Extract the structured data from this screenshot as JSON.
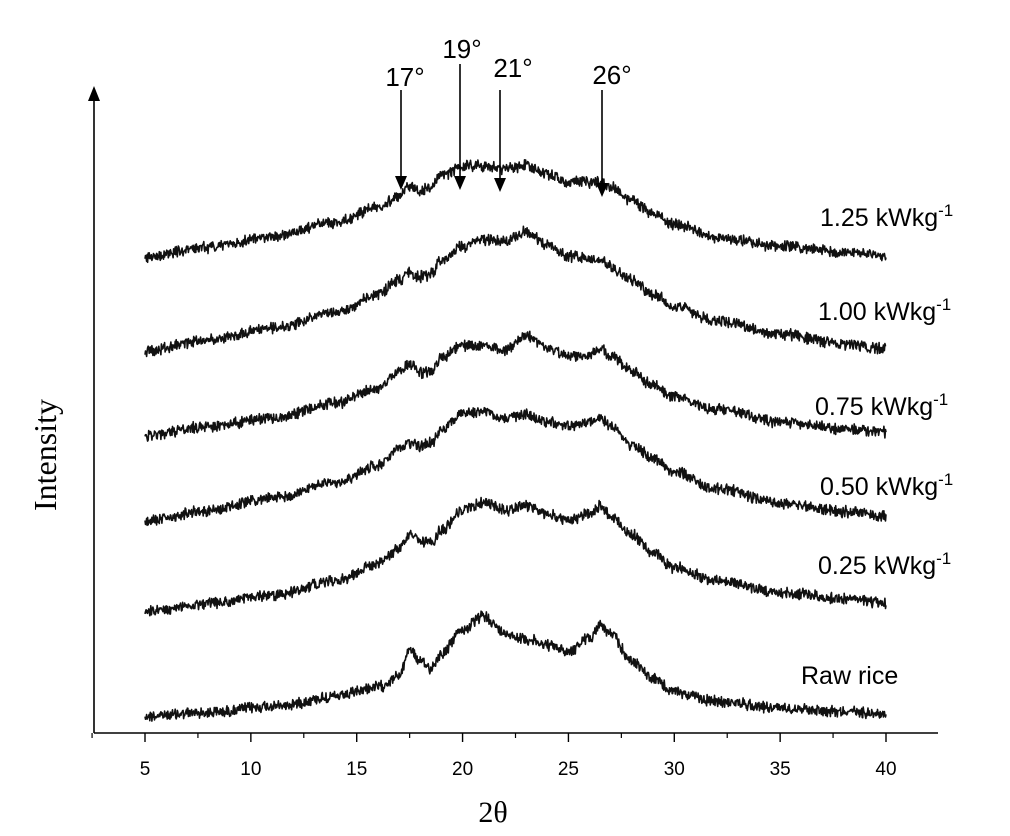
{
  "chart_data": {
    "type": "line",
    "xlabel": "2θ",
    "ylabel": "Intensity",
    "xlim": [
      2.5,
      42.5
    ],
    "x_ticks": [
      5,
      10,
      15,
      20,
      25,
      30,
      35,
      40
    ],
    "y_ticks_shown": false,
    "grid": false,
    "legend": "inline labels at right end of each trace",
    "peak_annotations": [
      {
        "x": 17,
        "label": "17°"
      },
      {
        "x": 19,
        "label": "19°"
      },
      {
        "x": 21,
        "label": "21°"
      },
      {
        "x": 26,
        "label": "26°"
      }
    ],
    "series": [
      {
        "name": "Raw rice",
        "label_main": "Raw rice",
        "label_sup": "",
        "x": [
          5,
          8,
          11,
          14,
          16,
          17,
          17.5,
          18,
          18.5,
          19,
          20,
          21,
          22,
          23,
          24,
          25,
          26,
          26.5,
          27,
          28,
          29,
          30,
          32,
          35,
          38,
          40
        ],
        "y": [
          0.0,
          0.3,
          0.8,
          1.6,
          2.4,
          3.3,
          5.6,
          4.5,
          4.0,
          5.2,
          7.2,
          8.3,
          6.9,
          6.4,
          5.9,
          5.4,
          6.5,
          7.6,
          6.8,
          4.6,
          3.1,
          2.0,
          1.2,
          0.7,
          0.4,
          0.2
        ]
      },
      {
        "name": "0.25 kWkg-1",
        "label_main": "0.25 kWkg",
        "label_sup": "-1",
        "x": [
          5,
          8,
          11,
          14,
          16,
          17,
          17.5,
          18,
          18.5,
          19,
          20,
          21,
          22,
          23,
          24,
          25,
          26,
          26.5,
          27,
          28,
          29,
          30,
          32,
          35,
          38,
          40
        ],
        "y": [
          0.0,
          0.7,
          1.4,
          2.6,
          4.0,
          5.3,
          6.4,
          5.9,
          5.7,
          6.8,
          8.5,
          9.1,
          8.5,
          8.9,
          8.1,
          7.6,
          8.2,
          8.8,
          8.0,
          6.4,
          4.9,
          3.7,
          2.6,
          1.6,
          1.1,
          0.7
        ]
      },
      {
        "name": "0.50 kWkg-1",
        "label_main": "0.50 kWkg",
        "label_sup": "-1",
        "x": [
          5,
          8,
          11,
          14,
          16,
          17,
          17.5,
          18,
          18.5,
          19,
          20,
          21,
          22,
          23,
          24,
          25,
          26,
          26.5,
          27,
          28,
          29,
          30,
          32,
          35,
          38,
          40
        ],
        "y": [
          0.0,
          0.9,
          1.9,
          3.2,
          4.6,
          5.9,
          6.5,
          6.2,
          6.5,
          7.6,
          8.9,
          9.1,
          8.6,
          8.9,
          8.2,
          7.9,
          8.3,
          8.6,
          7.9,
          6.4,
          5.2,
          4.1,
          2.7,
          1.5,
          0.8,
          0.4
        ]
      },
      {
        "name": "0.75 kWkg-1",
        "label_main": "0.75 kWkg",
        "label_sup": "-1",
        "x": [
          5,
          8,
          11,
          14,
          16,
          17,
          17.5,
          18,
          18.5,
          19,
          20,
          21,
          22,
          23,
          24,
          25,
          26,
          26.5,
          27,
          28,
          29,
          30,
          32,
          35,
          38,
          40
        ],
        "y": [
          0.0,
          0.8,
          1.5,
          2.7,
          4.0,
          5.4,
          6.0,
          5.3,
          5.4,
          6.6,
          7.5,
          7.5,
          7.2,
          8.4,
          7.3,
          6.6,
          6.7,
          7.3,
          6.6,
          5.4,
          4.2,
          3.3,
          2.2,
          1.2,
          0.6,
          0.3
        ]
      },
      {
        "name": "1.00 kWkg-1",
        "label_main": "1.00 kWkg",
        "label_sup": "-1",
        "x": [
          5,
          8,
          11,
          14,
          16,
          17,
          17.5,
          18,
          18.5,
          19,
          20,
          21,
          22,
          23,
          24,
          25,
          26,
          26.5,
          27,
          28,
          29,
          30,
          32,
          35,
          38,
          40
        ],
        "y": [
          0.0,
          0.9,
          1.9,
          3.2,
          4.7,
          5.9,
          6.5,
          6.2,
          6.4,
          7.6,
          8.7,
          9.3,
          9.2,
          9.9,
          8.9,
          7.9,
          7.7,
          7.6,
          7.0,
          5.9,
          4.7,
          3.7,
          2.5,
          1.4,
          0.6,
          0.2
        ]
      },
      {
        "name": "1.25 kWkg-1",
        "label_main": "1.25 kWkg",
        "label_sup": "-1",
        "x": [
          5,
          8,
          11,
          14,
          16,
          17,
          17.5,
          18,
          18.5,
          19,
          20,
          21,
          22,
          23,
          24,
          25,
          26,
          26.5,
          27,
          28,
          29,
          30,
          32,
          35,
          38,
          40
        ],
        "y": [
          0.0,
          0.8,
          1.7,
          2.9,
          4.1,
          5.1,
          5.9,
          5.5,
          5.8,
          6.8,
          7.6,
          7.6,
          7.3,
          7.7,
          6.9,
          6.3,
          6.2,
          6.3,
          5.8,
          4.7,
          3.6,
          2.7,
          1.6,
          0.9,
          0.4,
          0.1
        ]
      }
    ]
  }
}
